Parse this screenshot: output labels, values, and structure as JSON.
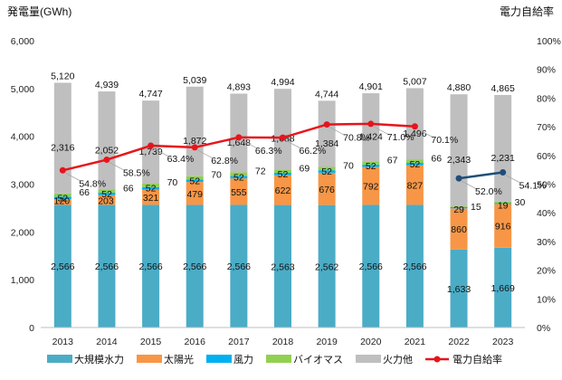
{
  "chart_data": {
    "type": "bar",
    "stacked": true,
    "ylabel_left": "発電量(GWh)",
    "ylabel_right": "電力自給率",
    "ylim_left": [
      0,
      6000
    ],
    "ylim_right": [
      0,
      100
    ],
    "yticks_left": [
      "0",
      "1,000",
      "2,000",
      "3,000",
      "4,000",
      "5,000",
      "6,000"
    ],
    "yticks_right": [
      "0%",
      "10%",
      "20%",
      "30%",
      "40%",
      "50%",
      "60%",
      "70%",
      "80%",
      "90%",
      "100%"
    ],
    "grid": false,
    "legend_position": "bottom",
    "categories": [
      "2013",
      "2014",
      "2015",
      "2016",
      "2017",
      "2018",
      "2019",
      "2020",
      "2021",
      "2022",
      "2023"
    ],
    "totals": [
      "5,120",
      "4,939",
      "4,747",
      "5,039",
      "4,893",
      "4,994",
      "4,744",
      "4,901",
      "5,007",
      "4,880",
      "4,865"
    ],
    "series": [
      {
        "name": "大規模水力",
        "color": "#4bacc6",
        "values": [
          2566,
          2566,
          2566,
          2566,
          2566,
          2563,
          2562,
          2566,
          2566,
          1633,
          1669
        ],
        "labels": [
          "2,566",
          "2,566",
          "2,566",
          "2,566",
          "2,566",
          "2,563",
          "2,562",
          "2,566",
          "2,566",
          "1,633",
          "1,669"
        ]
      },
      {
        "name": "太陽光",
        "color": "#f79646",
        "values": [
          120,
          203,
          321,
          479,
          555,
          622,
          676,
          792,
          827,
          860,
          916
        ],
        "labels": [
          "120",
          "203",
          "321",
          "479",
          "555",
          "622",
          "676",
          "792",
          "827",
          "860",
          "916"
        ]
      },
      {
        "name": "風力",
        "color": "#00b0f0",
        "values": [
          52,
          52,
          52,
          52,
          52,
          52,
          52,
          52,
          52,
          29,
          19
        ],
        "labels": [
          "52",
          "52",
          "52",
          "52",
          "52",
          "52",
          "52",
          "52",
          "52",
          "29",
          "19"
        ]
      },
      {
        "name": "バイオマス",
        "color": "#92d050",
        "values": [
          66,
          66,
          70,
          70,
          72,
          69,
          70,
          67,
          66,
          15,
          30
        ],
        "labels": [
          "66",
          "66",
          "70",
          "70",
          "72",
          "69",
          "70",
          "67",
          "66",
          "15",
          "30"
        ]
      },
      {
        "name": "火力他",
        "color": "#bfbfbf",
        "values": [
          2316,
          2052,
          1739,
          1872,
          1648,
          1688,
          1384,
          1424,
          1496,
          2343,
          2231
        ],
        "labels": [
          "2,316",
          "2,052",
          "1,739",
          "1,872",
          "1,648",
          "1,688",
          "1,384",
          "1,424",
          "1,496",
          "2,343",
          "2,231"
        ]
      }
    ],
    "line": {
      "name": "電力自給率",
      "color": "#e8141b",
      "color_second_segment": "#1f4e79",
      "values": [
        54.8,
        58.5,
        63.4,
        62.8,
        66.3,
        66.2,
        70.8,
        71.0,
        70.1,
        52.0,
        54.1
      ],
      "labels": [
        "54.8%",
        "58.5%",
        "63.4%",
        "62.8%",
        "66.3%",
        "66.2%",
        "70.8%",
        "71.0%",
        "70.1%",
        "52.0%",
        "54.1%"
      ],
      "segments": [
        [
          0,
          8
        ],
        [
          9,
          10
        ]
      ]
    }
  }
}
